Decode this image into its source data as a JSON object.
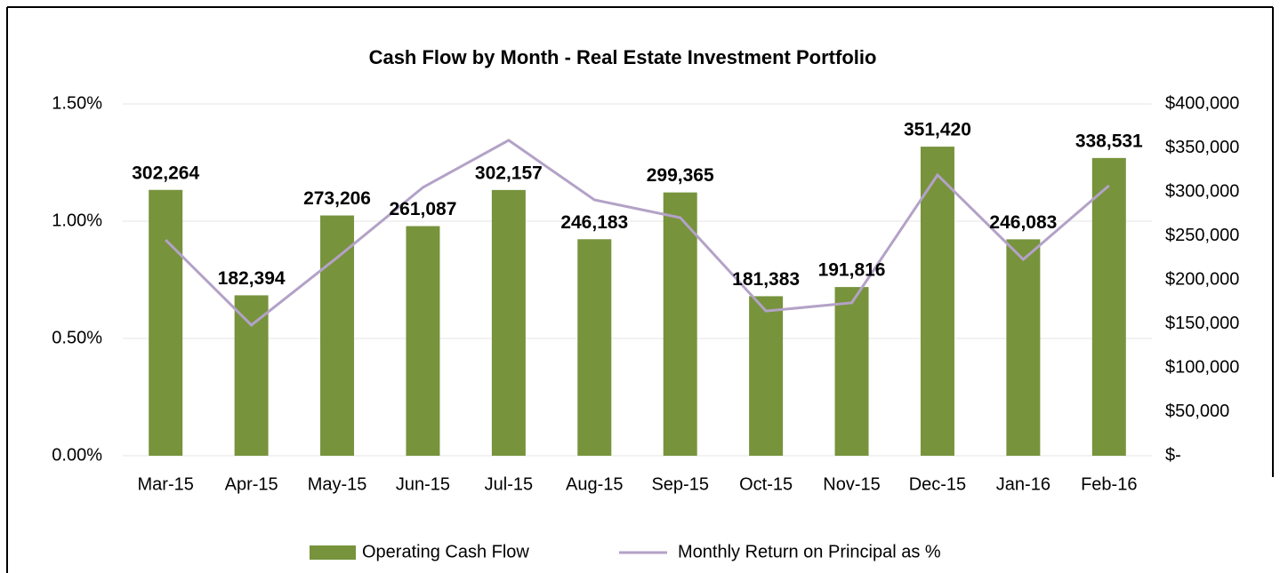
{
  "chart_data": {
    "type": "bar",
    "title": "Cash Flow by Month - Real Estate Investment Portfolio",
    "categories": [
      "Mar-15",
      "Apr-15",
      "May-15",
      "Jun-15",
      "Jul-15",
      "Aug-15",
      "Sep-15",
      "Oct-15",
      "Nov-15",
      "Dec-15",
      "Jan-16",
      "Feb-16"
    ],
    "series": [
      {
        "name": "Operating Cash Flow",
        "type": "bar",
        "axis": "y2",
        "color": "#77933c",
        "values": [
          302264,
          182394,
          273206,
          261087,
          302157,
          246183,
          299365,
          181383,
          191816,
          351420,
          246083,
          338531
        ],
        "value_labels": [
          "302,264",
          "182,394",
          "273,206",
          "261,087",
          "302,157",
          "246,183",
          "299,365",
          "181,383",
          "191,816",
          "351,420",
          "246,083",
          "338,531"
        ]
      },
      {
        "name": "Monthly Return on Principal as %",
        "type": "line",
        "axis": "y",
        "color": "#b3a2c7",
        "values": [
          0.92,
          0.557,
          0.845,
          1.144,
          1.345,
          1.091,
          1.015,
          0.617,
          0.652,
          1.197,
          0.837,
          1.152
        ]
      }
    ],
    "ylim": [
      0,
      1.5
    ],
    "yticks": [
      {
        "value": 0,
        "label": "0.00%"
      },
      {
        "value": 0.5,
        "label": "0.50%"
      },
      {
        "value": 1,
        "label": "1.00%"
      },
      {
        "value": 1.5,
        "label": "1.50%"
      }
    ],
    "y2lim": [
      0,
      400000
    ],
    "y2ticks": [
      {
        "value": 0,
        "label": "$-"
      },
      {
        "value": 50000,
        "label": "$50,000"
      },
      {
        "value": 100000,
        "label": "$100,000"
      },
      {
        "value": 150000,
        "label": "$150,000"
      },
      {
        "value": 200000,
        "label": "$200,000"
      },
      {
        "value": 250000,
        "label": "$250,000"
      },
      {
        "value": 300000,
        "label": "$300,000"
      },
      {
        "value": 350000,
        "label": "$350,000"
      },
      {
        "value": 400000,
        "label": "$400,000"
      }
    ],
    "grid": true,
    "legend": "bottom"
  }
}
